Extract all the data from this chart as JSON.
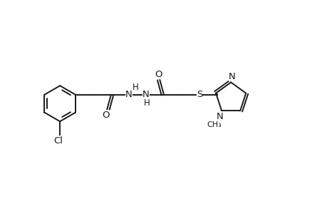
{
  "bg_color": "#ffffff",
  "line_color": "#1a1a1a",
  "line_width": 1.4,
  "font_size": 9.5,
  "figsize": [
    4.6,
    3.0
  ],
  "dpi": 100,
  "xlim": [
    0,
    9.5
  ],
  "ylim": [
    0,
    6.0
  ]
}
